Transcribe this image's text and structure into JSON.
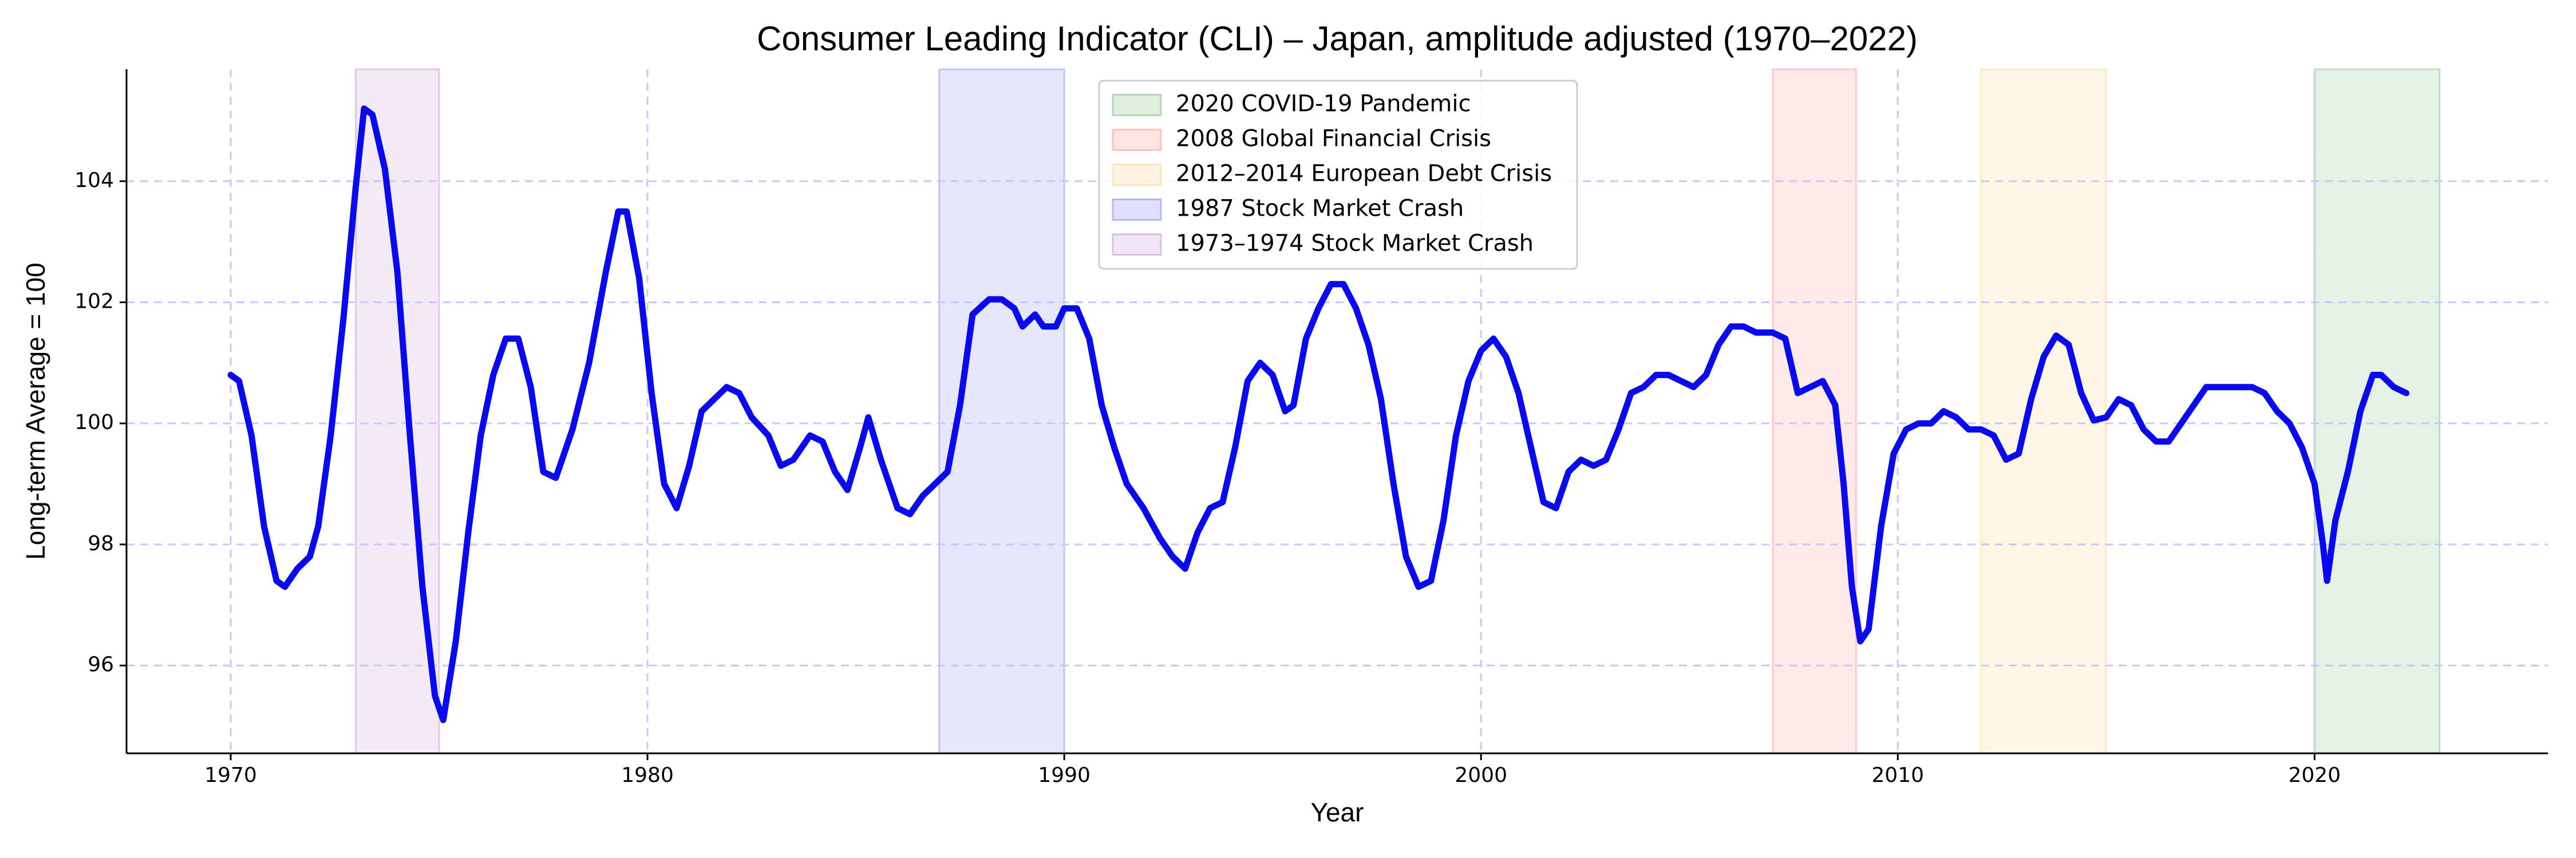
{
  "chart_data": {
    "type": "line",
    "title": "Consumer Leading Indicator (CLI) – Japan, amplitude adjusted (1970–2022)",
    "x_label": "Year",
    "y_label": "Long-term Average = 100",
    "xlim": [
      1967.5,
      2025.6
    ],
    "ylim": [
      94.55,
      105.85
    ],
    "xticks": [
      1970,
      1980,
      1990,
      2000,
      2010,
      2020
    ],
    "yticks": [
      96,
      98,
      100,
      102,
      104
    ],
    "grid": true,
    "legend": "upper center",
    "spans": [
      {
        "name": "2020 COVID-19 Pandemic",
        "color": "#2e8b2e",
        "start": 2020,
        "end": 2023
      },
      {
        "name": "2008 Global Financial Crisis",
        "color": "#ff4d4d",
        "start": 2007,
        "end": 2009
      },
      {
        "name": "2012–2014 European Debt Crisis",
        "color": "#ffb833",
        "start": 2012,
        "end": 2015
      },
      {
        "name": "1987 Stock Market Crash",
        "color": "#3333ff",
        "start": 1987,
        "end": 1990
      },
      {
        "name": "1973–1974 Stock Market Crash",
        "color": "#9a4fb0",
        "start": 1973,
        "end": 1975
      }
    ],
    "series": [
      {
        "color": "#0a0aee",
        "x": [
          1970.0,
          1970.2,
          1970.5,
          1970.8,
          1971.1,
          1971.3,
          1971.6,
          1971.9,
          1972.1,
          1972.4,
          1972.7,
          1973.0,
          1973.2,
          1973.4,
          1973.7,
          1974.0,
          1974.3,
          1974.6,
          1974.9,
          1975.1,
          1975.4,
          1975.7,
          1976.0,
          1976.3,
          1976.6,
          1976.9,
          1977.2,
          1977.5,
          1977.8,
          1978.2,
          1978.6,
          1979.0,
          1979.3,
          1979.5,
          1979.8,
          1980.1,
          1980.4,
          1980.7,
          1981.0,
          1981.3,
          1981.6,
          1981.9,
          1982.2,
          1982.5,
          1982.9,
          1983.2,
          1983.5,
          1983.9,
          1984.2,
          1984.5,
          1984.8,
          1985.1,
          1985.3,
          1985.6,
          1986.0,
          1986.3,
          1986.6,
          1986.9,
          1987.2,
          1987.5,
          1987.8,
          1988.2,
          1988.5,
          1988.8,
          1989.0,
          1989.3,
          1989.5,
          1989.8,
          1990.0,
          1990.3,
          1990.6,
          1990.9,
          1991.2,
          1991.5,
          1991.9,
          1992.3,
          1992.6,
          1992.9,
          1993.2,
          1993.5,
          1993.8,
          1994.1,
          1994.4,
          1994.7,
          1995.0,
          1995.3,
          1995.5,
          1995.8,
          1996.1,
          1996.4,
          1996.7,
          1997.0,
          1997.3,
          1997.6,
          1997.9,
          1998.2,
          1998.5,
          1998.8,
          1999.1,
          1999.4,
          1999.7,
          2000.0,
          2000.3,
          2000.6,
          2000.9,
          2001.2,
          2001.5,
          2001.8,
          2002.1,
          2002.4,
          2002.7,
          2003.0,
          2003.3,
          2003.6,
          2003.9,
          2004.2,
          2004.5,
          2004.8,
          2005.1,
          2005.4,
          2005.7,
          2006.0,
          2006.3,
          2006.6,
          2007.0,
          2007.3,
          2007.6,
          2007.9,
          2008.2,
          2008.5,
          2008.7,
          2008.9,
          2009.1,
          2009.3,
          2009.6,
          2009.9,
          2010.2,
          2010.5,
          2010.8,
          2011.1,
          2011.4,
          2011.7,
          2012.0,
          2012.3,
          2012.6,
          2012.9,
          2013.2,
          2013.5,
          2013.8,
          2014.1,
          2014.4,
          2014.7,
          2015.0,
          2015.3,
          2015.6,
          2015.9,
          2016.2,
          2016.5,
          2016.8,
          2017.1,
          2017.4,
          2017.8,
          2018.2,
          2018.5,
          2018.8,
          2019.1,
          2019.4,
          2019.7,
          2020.0,
          2020.2,
          2020.3,
          2020.5,
          2020.8,
          2021.1,
          2021.4,
          2021.6,
          2021.9,
          2022.2
        ],
        "values": [
          100.8,
          100.7,
          99.8,
          98.3,
          97.4,
          97.3,
          97.6,
          97.8,
          98.3,
          99.8,
          101.7,
          103.9,
          105.2,
          105.1,
          104.2,
          102.5,
          99.8,
          97.3,
          95.5,
          95.1,
          96.4,
          98.2,
          99.8,
          100.8,
          101.4,
          101.4,
          100.6,
          99.2,
          99.1,
          99.9,
          101.0,
          102.5,
          103.5,
          103.5,
          102.4,
          100.5,
          99.0,
          98.6,
          99.3,
          100.2,
          100.4,
          100.6,
          100.5,
          100.1,
          99.8,
          99.3,
          99.4,
          99.8,
          99.7,
          99.2,
          98.9,
          99.6,
          100.1,
          99.4,
          98.6,
          98.5,
          98.8,
          99.0,
          99.2,
          100.3,
          101.8,
          102.05,
          102.05,
          101.9,
          101.6,
          101.8,
          101.6,
          101.6,
          101.9,
          101.9,
          101.4,
          100.3,
          99.6,
          99.0,
          98.6,
          98.1,
          97.8,
          97.6,
          98.2,
          98.6,
          98.7,
          99.6,
          100.7,
          101.0,
          100.8,
          100.2,
          100.3,
          101.4,
          101.9,
          102.3,
          102.3,
          101.9,
          101.3,
          100.4,
          99.0,
          97.8,
          97.3,
          97.4,
          98.4,
          99.8,
          100.7,
          101.2,
          101.4,
          101.1,
          100.5,
          99.6,
          98.7,
          98.6,
          99.2,
          99.4,
          99.3,
          99.4,
          99.9,
          100.5,
          100.6,
          100.8,
          100.8,
          100.7,
          100.6,
          100.8,
          101.3,
          101.6,
          101.6,
          101.5,
          101.5,
          101.4,
          100.5,
          100.6,
          100.7,
          100.3,
          99.0,
          97.3,
          96.4,
          96.6,
          98.3,
          99.5,
          99.9,
          100.0,
          100.0,
          100.2,
          100.1,
          99.9,
          99.9,
          99.8,
          99.4,
          99.5,
          100.4,
          101.1,
          101.45,
          101.3,
          100.5,
          100.05,
          100.1,
          100.4,
          100.3,
          99.9,
          99.7,
          99.7,
          100.0,
          100.3,
          100.6,
          100.6,
          100.6,
          100.6,
          100.5,
          100.2,
          100.0,
          99.6,
          99.0,
          98.0,
          97.4,
          98.4,
          99.2,
          100.2,
          100.8,
          100.8,
          100.6,
          100.5
        ]
      }
    ]
  }
}
